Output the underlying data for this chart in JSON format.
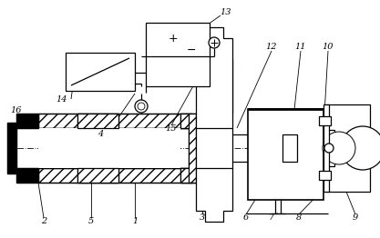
{
  "bg_color": "#ffffff",
  "line_color": "#000000",
  "fig_width": 4.17,
  "fig_height": 2.62,
  "dpi": 100
}
